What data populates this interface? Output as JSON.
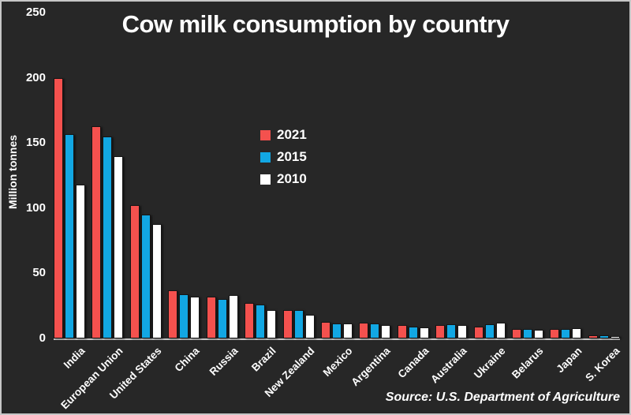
{
  "title": "Cow milk consumption by country",
  "y_axis_label": "Million tonnes",
  "source_note": "Source: U.S. Department of Agriculture",
  "colors": {
    "background": "#272727",
    "text": "#ffffff",
    "axis": "#c4c4c4",
    "series_2021": "#f4514e",
    "series_2015": "#12a7e3",
    "series_2010": "#ffffff"
  },
  "legend": [
    {
      "label": "2021",
      "color": "#f4514e"
    },
    {
      "label": "2015",
      "color": "#12a7e3"
    },
    {
      "label": "2010",
      "color": "#ffffff"
    }
  ],
  "chart_data": {
    "type": "bar",
    "title": "Cow milk consumption by country",
    "xlabel": "",
    "ylabel": "Million tonnes",
    "ylim": [
      0,
      250
    ],
    "yticks": [
      0,
      50,
      100,
      150,
      200,
      250
    ],
    "grid": false,
    "legend_position": "upper center",
    "categories": [
      "India",
      "European Union",
      "United States",
      "China",
      "Russia",
      "Brazil",
      "New Zealand",
      "Mexico",
      "Argentina",
      "Canada",
      "Australia",
      "Ukraine",
      "Belarus",
      "Japan",
      "S. Korea"
    ],
    "series": [
      {
        "name": "2021",
        "color": "#f4514e",
        "values": [
          200,
          163,
          102,
          37,
          32,
          27,
          22,
          13,
          12,
          10,
          10,
          9,
          7.5,
          7.5,
          2.2
        ]
      },
      {
        "name": "2015",
        "color": "#12a7e3",
        "values": [
          157,
          155,
          95,
          34,
          30,
          26,
          21.5,
          11.5,
          11.5,
          9,
          11,
          11,
          7,
          7.5,
          2.4
        ]
      },
      {
        "name": "2010",
        "color": "#ffffff",
        "values": [
          118,
          140,
          88,
          32,
          33,
          22,
          18,
          11.5,
          10.5,
          8.5,
          10,
          12,
          6.5,
          8,
          1.6
        ]
      }
    ]
  }
}
